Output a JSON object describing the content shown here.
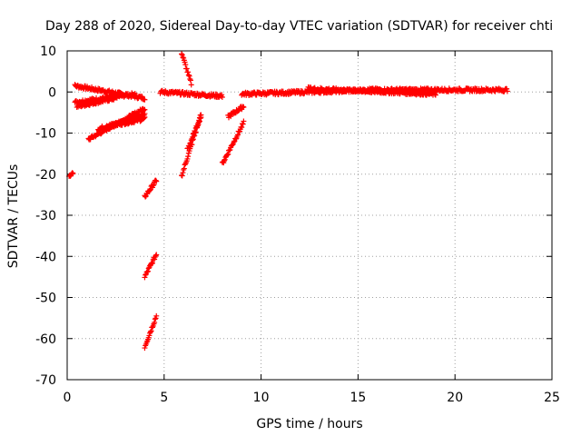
{
  "chart_data": {
    "type": "scatter",
    "title": "Day 288 of 2020, Sidereal Day-to-day VTEC variation (SDTVAR) for receiver chti",
    "xlabel": "GPS time / hours",
    "ylabel": "SDTVAR / TECUs",
    "xlim": [
      0,
      25
    ],
    "ylim": [
      -70,
      10
    ],
    "xticks": [
      0,
      5,
      10,
      15,
      20,
      25
    ],
    "yticks": [
      10,
      0,
      -10,
      -20,
      -30,
      -40,
      -50,
      -60,
      -70
    ],
    "grid": true,
    "marker": "+",
    "color": "#ff0000",
    "segments": [
      {
        "name": "early-isolated",
        "x0": 0.1,
        "x1": 0.3,
        "y0": -20.5,
        "y1": -19.5
      },
      {
        "name": "band-top",
        "x0": 0.4,
        "x1": 4.0,
        "y0": 1.5,
        "y1": -1.5
      },
      {
        "name": "band-mid",
        "x0": 0.4,
        "x1": 3.5,
        "y0": -2.5,
        "y1": -0.5
      },
      {
        "name": "band-low",
        "x0": 0.5,
        "x1": 2.5,
        "y0": -3.5,
        "y1": -1.5
      },
      {
        "name": "arc-a",
        "x0": 1.1,
        "x1": 4.0,
        "y0": -11.5,
        "y1": -4.0
      },
      {
        "name": "arc-b",
        "x0": 1.6,
        "x1": 4.0,
        "y0": -9.0,
        "y1": -5.5
      },
      {
        "name": "arc-c",
        "x0": 2.0,
        "x1": 4.0,
        "y0": -8.5,
        "y1": -6.5
      },
      {
        "name": "drop-1",
        "x0": 4.0,
        "x1": 4.6,
        "y0": -25.5,
        "y1": -21.5
      },
      {
        "name": "drop-2",
        "x0": 4.0,
        "x1": 4.6,
        "y0": -45.0,
        "y1": -39.5
      },
      {
        "name": "drop-3",
        "x0": 4.0,
        "x1": 4.6,
        "y0": -62.0,
        "y1": -54.5
      },
      {
        "name": "mid-band-1",
        "x0": 4.8,
        "x1": 8.0,
        "y0": 0.0,
        "y1": -1.0
      },
      {
        "name": "rise-top",
        "x0": 5.9,
        "x1": 6.4,
        "y0": 9.5,
        "y1": 2.0
      },
      {
        "name": "curve-a",
        "x0": 5.9,
        "x1": 6.9,
        "y0": -20.5,
        "y1": -5.5
      },
      {
        "name": "curve-b",
        "x0": 6.2,
        "x1": 6.9,
        "y0": -14.0,
        "y1": -6.0
      },
      {
        "name": "curve-c",
        "x0": 8.0,
        "x1": 9.1,
        "y0": -17.5,
        "y1": -7.5
      },
      {
        "name": "curve-d",
        "x0": 8.3,
        "x1": 9.1,
        "y0": -6.0,
        "y1": -3.5
      },
      {
        "name": "main-band-1",
        "x0": 9.0,
        "x1": 16.0,
        "y0": -0.5,
        "y1": 0.5
      },
      {
        "name": "main-band-2",
        "x0": 15.5,
        "x1": 22.7,
        "y0": 0.5,
        "y1": 0.5
      },
      {
        "name": "main-band-3",
        "x0": 12.4,
        "x1": 19.0,
        "y0": 0.8,
        "y1": -0.5
      }
    ]
  }
}
